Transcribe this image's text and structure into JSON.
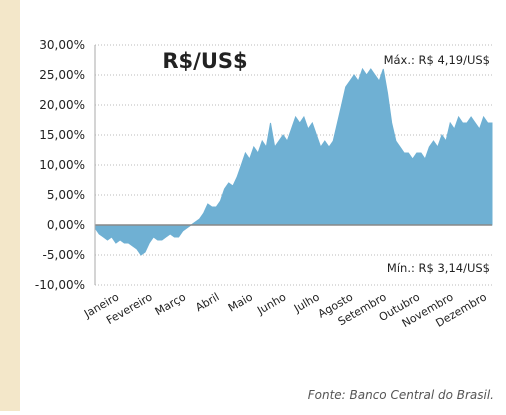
{
  "chart_data": {
    "type": "area",
    "title": "R$/US$",
    "annotations": [
      "Máx.: R$ 4,19/US$",
      "Mín.: R$ 3,14/US$"
    ],
    "source": "Fonte: Banco Central do Brasil.",
    "color": "#6fb0d3",
    "grid": true,
    "ylim": [
      -10,
      30
    ],
    "yticks": [
      {
        "value": -10,
        "label": "-10,00%"
      },
      {
        "value": -5,
        "label": "-5,00%"
      },
      {
        "value": 0,
        "label": "0,00%"
      },
      {
        "value": 5,
        "label": "5,00%"
      },
      {
        "value": 10,
        "label": "10,00%"
      },
      {
        "value": 15,
        "label": "15,00%"
      },
      {
        "value": 20,
        "label": "20,00%"
      },
      {
        "value": 25,
        "label": "25,00%"
      },
      {
        "value": 30,
        "label": "30,00%"
      }
    ],
    "categories": [
      null,
      null,
      null,
      null,
      "Janeiro",
      null,
      null,
      null,
      null,
      null,
      null,
      null,
      "Fevereiro",
      null,
      null,
      null,
      null,
      null,
      null,
      null,
      "Março",
      null,
      null,
      null,
      null,
      null,
      null,
      null,
      "Abril",
      null,
      null,
      null,
      null,
      null,
      null,
      null,
      "Maio",
      null,
      null,
      null,
      null,
      null,
      null,
      null,
      "Junho",
      null,
      null,
      null,
      null,
      null,
      null,
      null,
      "Julho",
      null,
      null,
      null,
      null,
      null,
      null,
      null,
      "Agosto",
      null,
      null,
      null,
      null,
      null,
      null,
      null,
      "Setembro",
      null,
      null,
      null,
      null,
      null,
      null,
      null,
      "Outubro",
      null,
      null,
      null,
      null,
      null,
      null,
      null,
      "Novembro",
      null,
      null,
      null,
      null,
      null,
      null,
      null,
      "Dezembro",
      null,
      null,
      null
    ],
    "values": [
      -0.5,
      -1.5,
      -2,
      -2.5,
      -2,
      -3,
      -2.5,
      -3,
      -3,
      -3.5,
      -4,
      -5,
      -4.5,
      -3,
      -2,
      -2.5,
      -2.5,
      -2,
      -1.5,
      -2,
      -2,
      -1,
      -0.5,
      0,
      0.5,
      1,
      2,
      3.5,
      3,
      3,
      4,
      6,
      7,
      6.5,
      8,
      10,
      12,
      11,
      13,
      12,
      14,
      13,
      17,
      13,
      14,
      15,
      14,
      16,
      18,
      17,
      18,
      16,
      17,
      15,
      13,
      14,
      13,
      14,
      17,
      20,
      23,
      24,
      25,
      24,
      26,
      25,
      26,
      25,
      24,
      26,
      22,
      17,
      14,
      13,
      12,
      12,
      11,
      12,
      12,
      11,
      13,
      14,
      13,
      15,
      14,
      17,
      16,
      18,
      17,
      17,
      18,
      17,
      16,
      18,
      17,
      17
    ]
  }
}
